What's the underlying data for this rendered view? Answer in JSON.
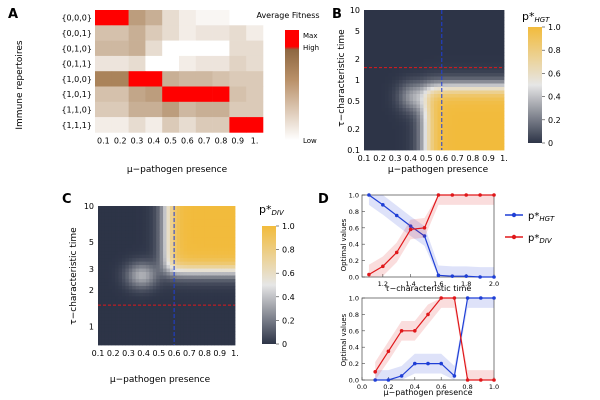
{
  "panel_letters": {
    "a": "A",
    "b": "B",
    "c": "C",
    "d": "D"
  },
  "colors": {
    "hm_low": "#ffffff",
    "hm_mid": "#a47a4e",
    "hm_max": "#ff0000",
    "cm_low": "#2d3447",
    "cm_mid": "#e6e6e6",
    "cm_high": "#f2bb3c",
    "blue": "#1f3fd6",
    "red": "#e0181b"
  },
  "chart_data": [
    {
      "id": "A",
      "type": "heatmap",
      "xlabel": "μ−pathogen presence",
      "ylabel": "Immune repertoires",
      "x_ticks": [
        "0.1",
        "0.2",
        "0.3",
        "0.4",
        "0.5",
        "0.6",
        "0.7",
        "0.8",
        "0.9",
        "1."
      ],
      "y_ticks": [
        "{0,0,0}",
        "{0,0,1}",
        "{0,1,0}",
        "{0,1,1}",
        "{1,0,0}",
        "{1,0,1}",
        "{1,1,0}",
        "{1,1,1}"
      ],
      "legend_title": "Average Fitness",
      "legend_labels": {
        "max": "Max",
        "high": "High",
        "low": "Low"
      },
      "values": [
        [
          1.0,
          1.0,
          0.55,
          0.45,
          0.2,
          0.1,
          0.05,
          0.05,
          0.0,
          0.0
        ],
        [
          0.35,
          0.35,
          0.45,
          0.3,
          0.2,
          0.1,
          0.15,
          0.15,
          0.2,
          0.1
        ],
        [
          0.4,
          0.4,
          0.45,
          0.2,
          0.0,
          0.0,
          0.0,
          0.0,
          0.2,
          0.2
        ],
        [
          0.15,
          0.15,
          0.2,
          0.0,
          0.0,
          0.1,
          0.15,
          0.15,
          0.25,
          0.2
        ],
        [
          0.7,
          0.7,
          1.0,
          1.0,
          0.45,
          0.4,
          0.4,
          0.35,
          0.3,
          0.3
        ],
        [
          0.35,
          0.35,
          0.5,
          0.55,
          1.0,
          1.0,
          1.0,
          1.0,
          0.35,
          0.3
        ],
        [
          0.3,
          0.3,
          0.45,
          0.45,
          0.55,
          0.4,
          0.45,
          0.45,
          0.3,
          0.3
        ],
        [
          0.1,
          0.1,
          0.2,
          0.1,
          0.3,
          0.2,
          0.3,
          0.3,
          1.0,
          1.0
        ]
      ]
    },
    {
      "id": "B",
      "type": "heatmap",
      "title": "p*",
      "title_sub": "HGT",
      "xlabel": "μ−pathogen presence",
      "ylabel": "τ−characteristic time",
      "x_ticks": [
        "0.1",
        "0.2",
        "0.3",
        "0.4",
        "0.5",
        "0.6",
        "0.7",
        "0.8",
        "0.9",
        "1."
      ],
      "y_ticks": [
        "0.1",
        "0.2",
        "0.5",
        "1",
        "2",
        "5",
        "10"
      ],
      "colorbar_ticks": [
        "0",
        "0.2",
        "0.4",
        "0.6",
        "0.8",
        "1.0"
      ],
      "v_line_x": 0.6,
      "h_line_tau": 1.5,
      "shape": "bottom-right-high"
    },
    {
      "id": "C",
      "type": "heatmap",
      "title": "p*",
      "title_sub": "DIV",
      "xlabel": "μ−pathogen presence",
      "ylabel": "τ−characteristic time",
      "x_ticks": [
        "0.1",
        "0.2",
        "0.3",
        "0.4",
        "0.5",
        "0.6",
        "0.7",
        "0.8",
        "0.9",
        "1."
      ],
      "y_ticks": [
        "1",
        "2",
        "3",
        "5",
        "10"
      ],
      "colorbar_ticks": [
        "0",
        "0.2",
        "0.4",
        "0.6",
        "0.8",
        "1.0"
      ],
      "v_line_x": 0.6,
      "h_line_tau": 1.5,
      "shape": "top-right-high"
    },
    {
      "id": "D-top",
      "type": "line",
      "xlabel": "τ−characteristic time",
      "ylabel": "Optimal values",
      "x_ticks": [
        "1.2",
        "1.4",
        "1.6",
        "1.8",
        "2.0"
      ],
      "y_ticks": [
        "0.0",
        "0.2",
        "0.4",
        "0.6",
        "0.8",
        "1.0"
      ],
      "xlim": [
        1.05,
        2.0
      ],
      "ylim": [
        0,
        1
      ],
      "series": [
        {
          "name": "p*HGT",
          "color": "blue",
          "x": [
            1.1,
            1.2,
            1.3,
            1.4,
            1.5,
            1.6,
            1.7,
            1.8,
            1.9,
            2.0
          ],
          "y": [
            1.0,
            0.88,
            0.75,
            0.62,
            0.5,
            0.02,
            0.01,
            0.01,
            0.0,
            0.0
          ]
        },
        {
          "name": "p*DIV",
          "color": "red",
          "x": [
            1.1,
            1.2,
            1.3,
            1.4,
            1.5,
            1.6,
            1.7,
            1.8,
            1.9,
            2.0
          ],
          "y": [
            0.03,
            0.13,
            0.3,
            0.58,
            0.6,
            1.0,
            1.0,
            1.0,
            1.0,
            1.0
          ]
        }
      ]
    },
    {
      "id": "D-bottom",
      "type": "line",
      "xlabel": "μ−pathogen presence",
      "ylabel": "Optimal values",
      "x_ticks": [
        "0.0",
        "0.2",
        "0.4",
        "0.6",
        "0.8",
        "1.0"
      ],
      "y_ticks": [
        "0.0",
        "0.2",
        "0.4",
        "0.6",
        "0.8",
        "1.0"
      ],
      "xlim": [
        0,
        1
      ],
      "ylim": [
        0,
        1
      ],
      "series": [
        {
          "name": "p*HGT",
          "color": "blue",
          "x": [
            0.1,
            0.2,
            0.3,
            0.4,
            0.5,
            0.6,
            0.7,
            0.8,
            0.9,
            1.0
          ],
          "y": [
            0.0,
            0.0,
            0.05,
            0.2,
            0.2,
            0.2,
            0.05,
            1.0,
            1.0,
            1.0
          ]
        },
        {
          "name": "p*DIV",
          "color": "red",
          "x": [
            0.1,
            0.2,
            0.3,
            0.4,
            0.5,
            0.6,
            0.7,
            0.8,
            0.9,
            1.0
          ],
          "y": [
            0.1,
            0.35,
            0.6,
            0.6,
            0.8,
            1.0,
            1.0,
            0.0,
            0.0,
            0.0
          ]
        }
      ]
    }
  ],
  "legend_d": [
    {
      "label": "p*",
      "sub": "HGT",
      "color": "blue"
    },
    {
      "label": "p*",
      "sub": "DIV",
      "color": "red"
    }
  ]
}
